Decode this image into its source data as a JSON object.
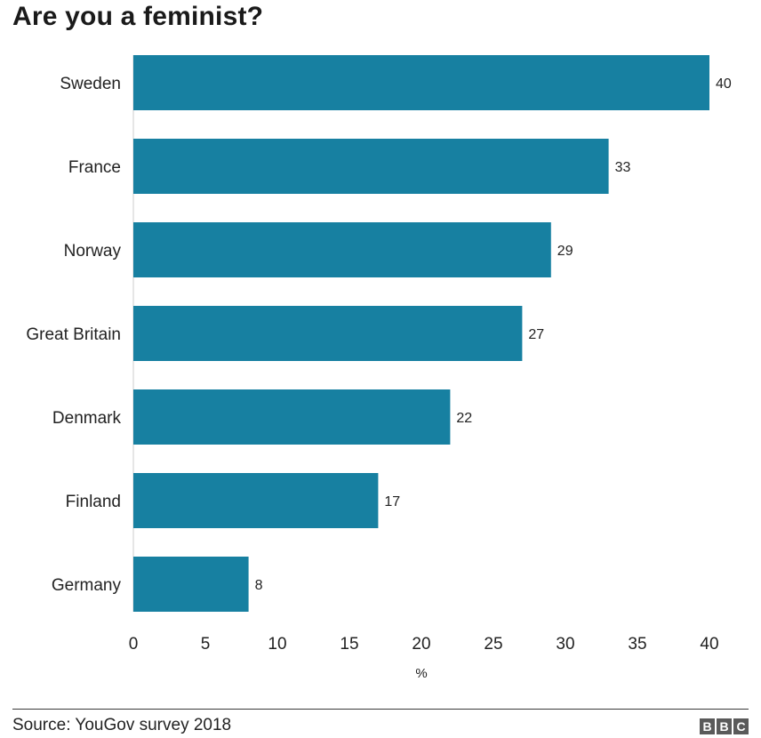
{
  "title": "Are you a feminist?",
  "source": "Source: YouGov survey 2018",
  "logo_text": "BBC",
  "colors": {
    "bar": "#1780a1",
    "axis": "#cccccc",
    "text": "#222222"
  },
  "chart_data": {
    "type": "bar",
    "orientation": "horizontal",
    "categories": [
      "Sweden",
      "France",
      "Norway",
      "Great Britain",
      "Denmark",
      "Finland",
      "Germany"
    ],
    "values": [
      40,
      33,
      29,
      27,
      22,
      17,
      8
    ],
    "xlabel": "%",
    "ylabel": "",
    "xlim": [
      0,
      40
    ],
    "xticks": [
      0,
      5,
      10,
      15,
      20,
      25,
      30,
      35,
      40
    ],
    "data_labels": true,
    "grid": false,
    "legend": "none"
  }
}
